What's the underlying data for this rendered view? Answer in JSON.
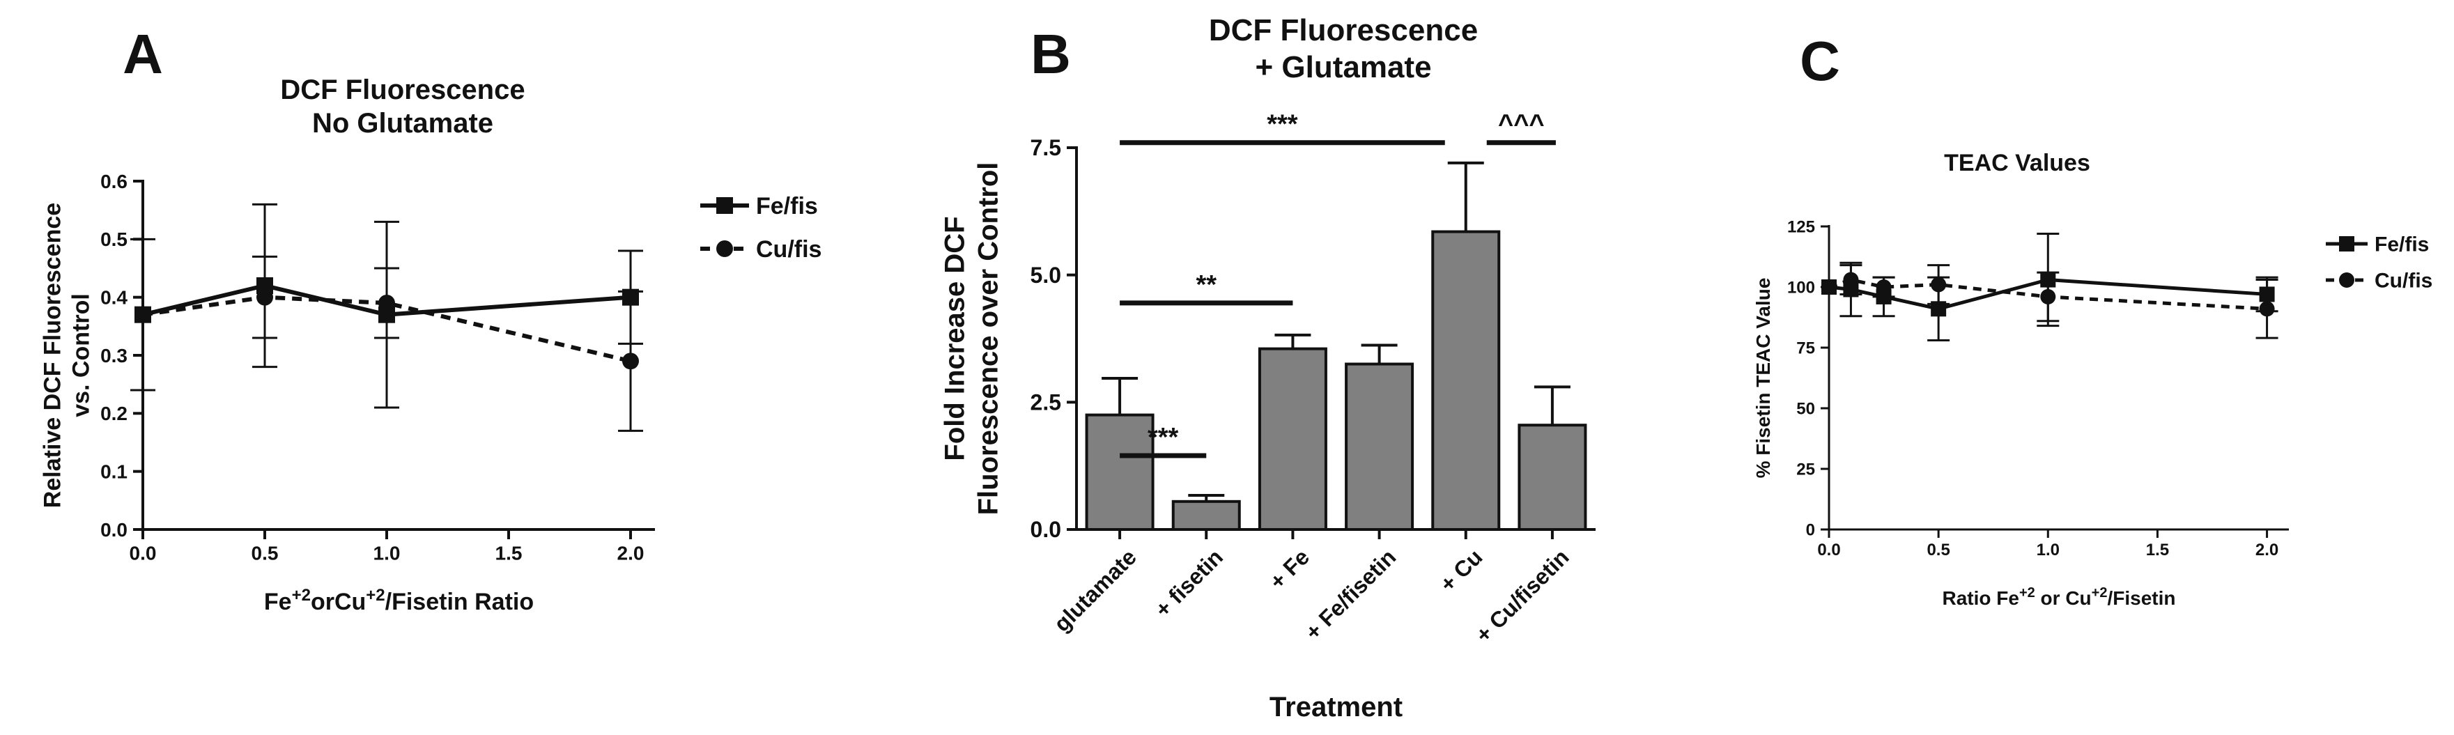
{
  "colors": {
    "ink": "#111111",
    "bar_fill": "#808080"
  },
  "chart_data": [
    {
      "panel_letter": "A",
      "type": "line",
      "title": "DCF Fluorescence",
      "subtitle": "No Glutamate",
      "xlabel_parts": [
        "Fe",
        "+2",
        "orCu",
        "+2",
        "/Fisetin Ratio"
      ],
      "ylabel": [
        "Relative DCF Fluorescence",
        "vs. Control"
      ],
      "xlim": [
        0,
        2.1
      ],
      "ylim": [
        0,
        0.6
      ],
      "xticks": [
        0.0,
        0.5,
        1.0,
        1.5,
        2.0
      ],
      "xtick_labels": [
        "0.0",
        "0.5",
        "1.0",
        "1.5",
        "2.0"
      ],
      "yticks": [
        0.0,
        0.1,
        0.2,
        0.3,
        0.4,
        0.5,
        0.6
      ],
      "ytick_labels": [
        "0.0",
        "0.1",
        "0.2",
        "0.3",
        "0.4",
        "0.5",
        "0.6"
      ],
      "legend": "right",
      "series": [
        {
          "name": "Fe/fis",
          "marker": "square",
          "dash": false,
          "x": [
            0,
            0.5,
            1.0,
            2.0
          ],
          "y": [
            0.37,
            0.42,
            0.37,
            0.4
          ],
          "err": [
            0.13,
            0.14,
            0.16,
            0.08
          ]
        },
        {
          "name": "Cu/fis",
          "marker": "circle",
          "dash": true,
          "x": [
            0,
            0.5,
            1.0,
            2.0
          ],
          "y": [
            0.37,
            0.4,
            0.39,
            0.29
          ],
          "err": [
            0.0,
            0.07,
            0.06,
            0.12
          ]
        }
      ]
    },
    {
      "panel_letter": "B",
      "type": "bar",
      "title": "DCF Fluorescence",
      "subtitle": "+ Glutamate",
      "xlabel": "Treatment",
      "ylabel": [
        "Fold Increase DCF",
        "Fluorescence over Control"
      ],
      "ylim": [
        0,
        7.5
      ],
      "yticks": [
        0,
        2.5,
        5.0,
        7.5
      ],
      "ytick_labels": [
        "0.0",
        "2.5",
        "5.0",
        "7.5"
      ],
      "categories": [
        "glutamate",
        "+ fisetin",
        "+ Fe",
        "+ Fe/fisetin",
        "+ Cu",
        "+ Cu/fisetin"
      ],
      "values": [
        2.25,
        0.55,
        3.55,
        3.25,
        5.85,
        2.05
      ],
      "errors": [
        0.72,
        0.12,
        0.27,
        0.37,
        1.35,
        0.75
      ],
      "annotations": [
        {
          "label": "***",
          "from": 0,
          "to": 1,
          "y": 1.45
        },
        {
          "label": "**",
          "from": 0,
          "to": 2,
          "y": 4.45
        },
        {
          "label": "***",
          "from": 0,
          "to": 4,
          "y": 7.6
        },
        {
          "label": "^^^",
          "from": 4,
          "to": 5,
          "y": 7.6
        }
      ]
    },
    {
      "panel_letter": "C",
      "type": "line",
      "title": "TEAC Values",
      "xlabel_parts": [
        "Ratio Fe",
        "+2",
        " or Cu",
        "+2",
        "/Fisetin"
      ],
      "ylabel": [
        "% Fisetin TEAC Value"
      ],
      "xlim": [
        0,
        2.1
      ],
      "ylim": [
        0,
        125
      ],
      "xticks": [
        0.0,
        0.5,
        1.0,
        1.5,
        2.0
      ],
      "xtick_labels": [
        "0.0",
        "0.5",
        "1.0",
        "1.5",
        "2.0"
      ],
      "yticks": [
        0,
        25,
        50,
        75,
        100,
        125
      ],
      "ytick_labels": [
        "0",
        "25",
        "50",
        "75",
        "100",
        "125"
      ],
      "legend": "right",
      "series": [
        {
          "name": "Fe/fis",
          "marker": "square",
          "dash": false,
          "x": [
            0,
            0.1,
            0.25,
            0.5,
            1.0,
            2.0
          ],
          "y": [
            100,
            99,
            96,
            91,
            103,
            97
          ],
          "err": [
            0,
            11,
            8,
            13,
            19,
            7
          ]
        },
        {
          "name": "Cu/fis",
          "marker": "circle",
          "dash": true,
          "x": [
            0,
            0.1,
            0.25,
            0.5,
            1.0,
            2.0
          ],
          "y": [
            100,
            103,
            100,
            101,
            96,
            91
          ],
          "err": [
            0,
            6,
            4,
            8,
            10,
            12
          ]
        }
      ]
    }
  ]
}
